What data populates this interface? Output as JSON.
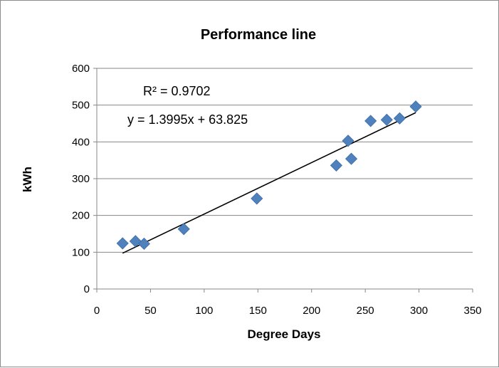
{
  "chart_data": {
    "type": "scatter",
    "title": "Performance line",
    "xlabel": "Degree Days",
    "ylabel": "kWh",
    "xlim": [
      0,
      350
    ],
    "ylim": [
      0,
      600
    ],
    "x_ticks": [
      "0",
      "50",
      "100",
      "150",
      "200",
      "250",
      "300",
      "350"
    ],
    "y_ticks": [
      "0",
      "100",
      "200",
      "300",
      "400",
      "500",
      "600"
    ],
    "grid": "horizontal",
    "legend": "none",
    "series": [
      {
        "marker": "diamond",
        "color": "#4f81bd",
        "points": [
          {
            "x": 24,
            "y": 124
          },
          {
            "x": 36,
            "y": 130
          },
          {
            "x": 44,
            "y": 123
          },
          {
            "x": 81,
            "y": 163
          },
          {
            "x": 149,
            "y": 246
          },
          {
            "x": 223,
            "y": 336
          },
          {
            "x": 234,
            "y": 403
          },
          {
            "x": 237,
            "y": 354
          },
          {
            "x": 255,
            "y": 457
          },
          {
            "x": 270,
            "y": 460
          },
          {
            "x": 282,
            "y": 464
          },
          {
            "x": 297,
            "y": 496
          }
        ]
      }
    ],
    "trendline": {
      "slope": 1.3995,
      "intercept": 63.825,
      "x_range": [
        24,
        297
      ],
      "color": "#000000"
    },
    "annotations": {
      "r_squared": "R² = 0.9702",
      "equation": "y = 1.3995x + 63.825"
    }
  }
}
